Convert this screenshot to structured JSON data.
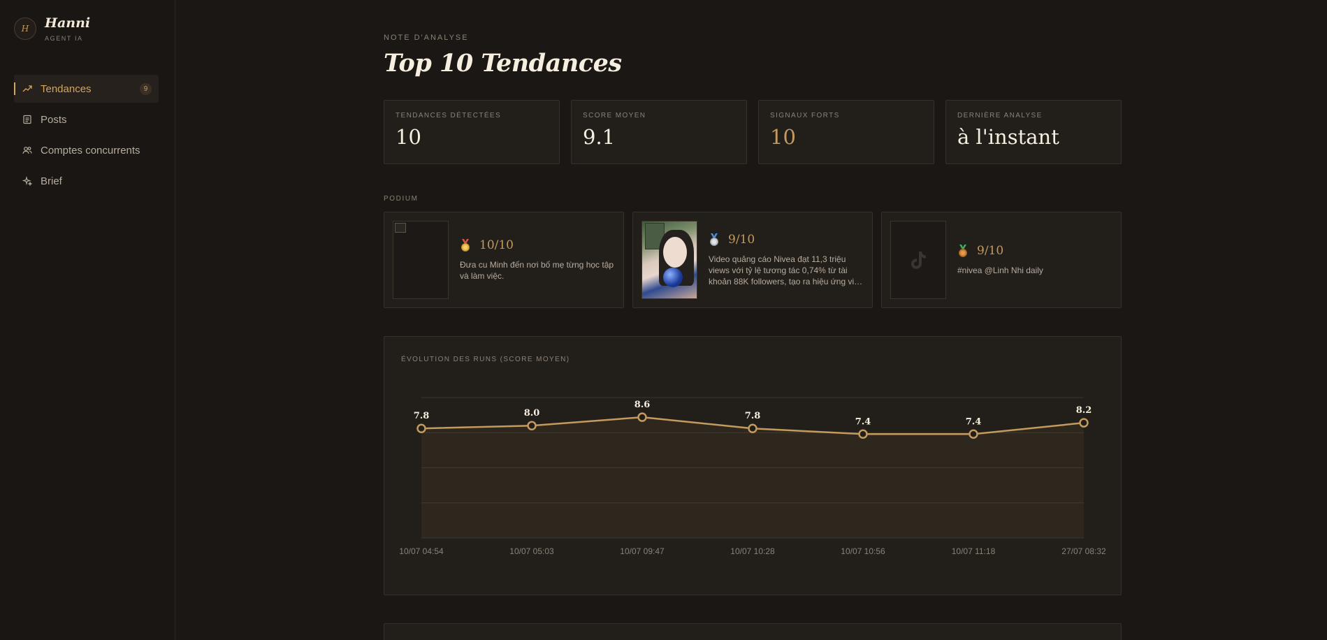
{
  "brand": {
    "initial": "H",
    "name": "Hanni",
    "subtitle": "AGENT IA"
  },
  "nav": [
    {
      "label": "Tendances",
      "icon": "trending-up-icon",
      "badge": "9",
      "active": true
    },
    {
      "label": "Posts",
      "icon": "document-icon",
      "badge": null,
      "active": false
    },
    {
      "label": "Comptes concurrents",
      "icon": "users-icon",
      "badge": null,
      "active": false
    },
    {
      "label": "Brief",
      "icon": "sparkles-icon",
      "badge": null,
      "active": false
    }
  ],
  "header": {
    "eyebrow": "NOTE D'ANALYSE",
    "title": "Top 10 Tendances"
  },
  "stats": [
    {
      "label": "TENDANCES DÉTECTÉES",
      "value": "10"
    },
    {
      "label": "SCORE MOYEN",
      "value": "9.1"
    },
    {
      "label": "SIGNAUX FORTS",
      "value": "10"
    },
    {
      "label": "DERNIÈRE ANALYSE",
      "value": "à l'instant"
    }
  ],
  "podium": {
    "label": "PODIUM",
    "items": [
      {
        "medal": "gold-medal-icon",
        "score": "10/10",
        "description": "Đưa cu Minh đến nơi bố mẹ từng học tập và làm việc."
      },
      {
        "medal": "silver-medal-icon",
        "score": "9/10",
        "description": "Video quảng cáo Nivea đạt 11,3 triệu views với tỷ lệ tương tác 0,74% từ tài khoản 88K followers, tạo ra hiệu ứng viral mạnh mẽ"
      },
      {
        "medal": "bronze-medal-icon",
        "score": "9/10",
        "description": "#nivea @Linh Nhi daily"
      }
    ]
  },
  "colors": {
    "accent": "#c49a5e",
    "background": "#1b1714",
    "card": "#221e1a"
  },
  "chart_data": {
    "type": "line",
    "title": "ÉVOLUTION DES RUNS (SCORE MOYEN)",
    "categories": [
      "10/07 04:54",
      "10/07 05:03",
      "10/07 09:47",
      "10/07 10:28",
      "10/07 10:56",
      "10/07 11:18",
      "27/07 08:32"
    ],
    "values": [
      7.8,
      8.0,
      8.6,
      7.8,
      7.4,
      7.4,
      8.2
    ],
    "value_labels": [
      "7.8",
      "8.0",
      "8.6",
      "7.8",
      "7.4",
      "7.4",
      "8.2"
    ],
    "ylim": [
      0,
      10
    ],
    "grid": true,
    "legend": "none"
  }
}
